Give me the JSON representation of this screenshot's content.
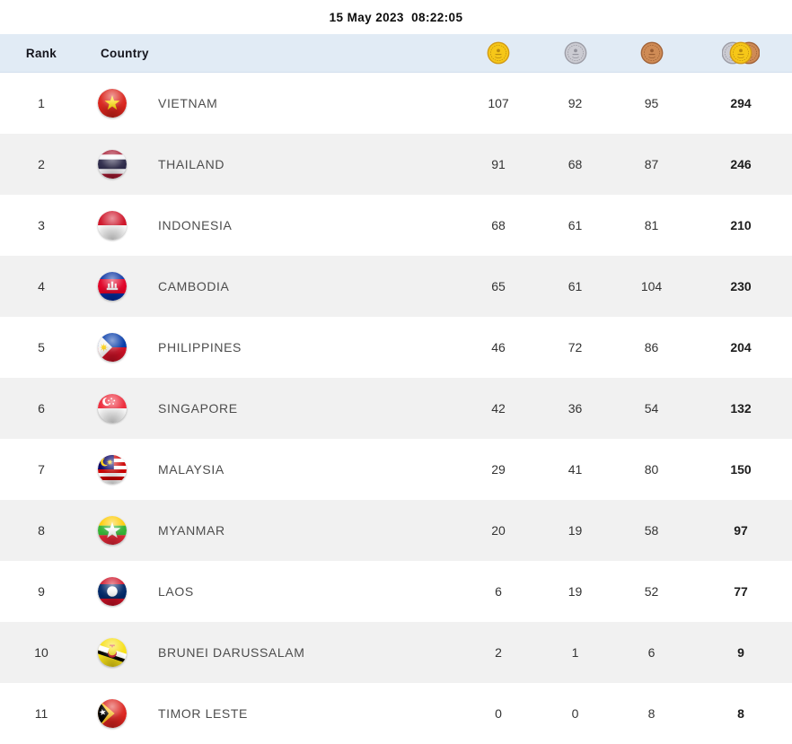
{
  "titlebar": {
    "timestamp": "15 May 2023  08:22:05"
  },
  "table": {
    "columns": {
      "rank_label": "Rank",
      "country_label": "Country",
      "gold_icon": "gold-medal-icon",
      "silver_icon": "silver-medal-icon",
      "bronze_icon": "bronze-medal-icon",
      "total_icon": "total-medals-icon"
    },
    "colors": {
      "header_bg": "#e1ebf5",
      "row_alt_bg": "#f1f1f1",
      "gold": "#f6c718",
      "silver": "#cbcbd2",
      "bronze": "#cf8b55"
    },
    "rows": [
      {
        "rank": 1,
        "country": "VIETNAM",
        "flag": "vietnam",
        "gold": 107,
        "silver": 92,
        "bronze": 95,
        "total": 294
      },
      {
        "rank": 2,
        "country": "THAILAND",
        "flag": "thailand",
        "gold": 91,
        "silver": 68,
        "bronze": 87,
        "total": 246
      },
      {
        "rank": 3,
        "country": "INDONESIA",
        "flag": "indonesia",
        "gold": 68,
        "silver": 61,
        "bronze": 81,
        "total": 210
      },
      {
        "rank": 4,
        "country": "CAMBODIA",
        "flag": "cambodia",
        "gold": 65,
        "silver": 61,
        "bronze": 104,
        "total": 230
      },
      {
        "rank": 5,
        "country": "PHILIPPINES",
        "flag": "philippines",
        "gold": 46,
        "silver": 72,
        "bronze": 86,
        "total": 204
      },
      {
        "rank": 6,
        "country": "SINGAPORE",
        "flag": "singapore",
        "gold": 42,
        "silver": 36,
        "bronze": 54,
        "total": 132
      },
      {
        "rank": 7,
        "country": "MALAYSIA",
        "flag": "malaysia",
        "gold": 29,
        "silver": 41,
        "bronze": 80,
        "total": 150
      },
      {
        "rank": 8,
        "country": "MYANMAR",
        "flag": "myanmar",
        "gold": 20,
        "silver": 19,
        "bronze": 58,
        "total": 97
      },
      {
        "rank": 9,
        "country": "LAOS",
        "flag": "laos",
        "gold": 6,
        "silver": 19,
        "bronze": 52,
        "total": 77
      },
      {
        "rank": 10,
        "country": "BRUNEI DARUSSALAM",
        "flag": "brunei",
        "gold": 2,
        "silver": 1,
        "bronze": 6,
        "total": 9
      },
      {
        "rank": 11,
        "country": "TIMOR LESTE",
        "flag": "timor-leste",
        "gold": 0,
        "silver": 0,
        "bronze": 8,
        "total": 8
      }
    ]
  },
  "chart_data": {
    "type": "table",
    "title": "15 May 2023  08:22:05",
    "columns": [
      "Rank",
      "Country",
      "Gold",
      "Silver",
      "Bronze",
      "Total"
    ],
    "rows": [
      [
        1,
        "VIETNAM",
        107,
        92,
        95,
        294
      ],
      [
        2,
        "THAILAND",
        91,
        68,
        87,
        246
      ],
      [
        3,
        "INDONESIA",
        68,
        61,
        81,
        210
      ],
      [
        4,
        "CAMBODIA",
        65,
        61,
        104,
        230
      ],
      [
        5,
        "PHILIPPINES",
        46,
        72,
        86,
        204
      ],
      [
        6,
        "SINGAPORE",
        42,
        36,
        54,
        132
      ],
      [
        7,
        "MALAYSIA",
        29,
        41,
        80,
        150
      ],
      [
        8,
        "MYANMAR",
        20,
        19,
        58,
        97
      ],
      [
        9,
        "LAOS",
        6,
        19,
        52,
        77
      ],
      [
        10,
        "BRUNEI DARUSSALAM",
        2,
        1,
        6,
        9
      ],
      [
        11,
        "TIMOR LESTE",
        0,
        0,
        8,
        8
      ]
    ]
  }
}
